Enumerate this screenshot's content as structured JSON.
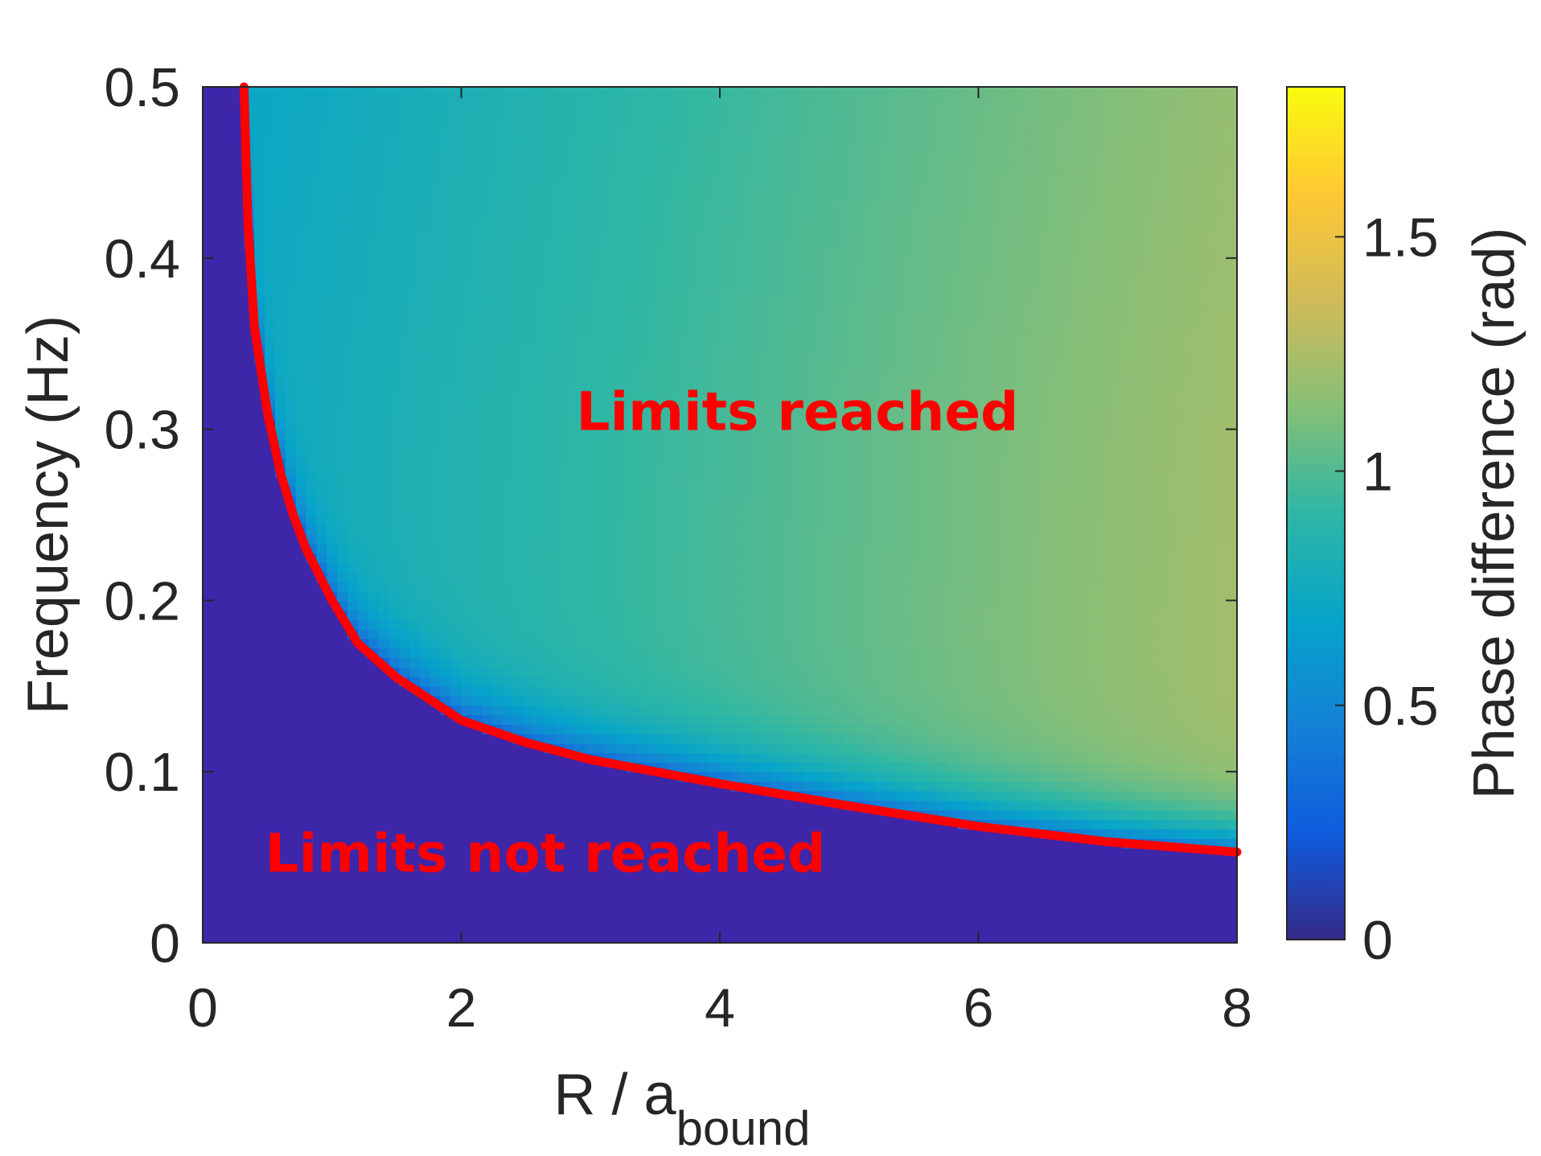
{
  "chart_data": {
    "type": "heatmap",
    "xlabel": "R / a",
    "xlabel_subscript": "bound",
    "ylabel": "Frequency (Hz)",
    "xlim": [
      0,
      8
    ],
    "ylim": [
      0,
      0.5
    ],
    "x_ticks": [
      "0",
      "2",
      "4",
      "6",
      "8"
    ],
    "y_ticks": [
      "0",
      "0.1",
      "0.2",
      "0.3",
      "0.4",
      "0.5"
    ],
    "colorbar": {
      "label": "Phase difference (rad)",
      "range": [
        0,
        1.82
      ],
      "ticks": [
        "0",
        "0.5",
        "1",
        "1.5"
      ],
      "tick_values": [
        0,
        0.5,
        1,
        1.5
      ],
      "colormap": "parula"
    },
    "background_color": "#3e26a8",
    "boundary_curve": {
      "color": "#ff0000",
      "x": [
        0.32,
        0.35,
        0.4,
        0.5,
        0.6,
        0.7,
        0.8,
        1.0,
        1.2,
        1.5,
        2.0,
        2.5,
        3.0,
        4.0,
        5.0,
        6.0,
        7.0,
        8.0
      ],
      "y": [
        0.5,
        0.42,
        0.36,
        0.31,
        0.275,
        0.25,
        0.23,
        0.2,
        0.175,
        0.155,
        0.13,
        0.117,
        0.107,
        0.093,
        0.08,
        0.068,
        0.059,
        0.053
      ]
    },
    "annotations": [
      {
        "text": "Limits reached",
        "x": 4.6,
        "y": 0.31
      },
      {
        "text": "Limits not reached",
        "x": 2.65,
        "y": 0.052
      }
    ]
  }
}
